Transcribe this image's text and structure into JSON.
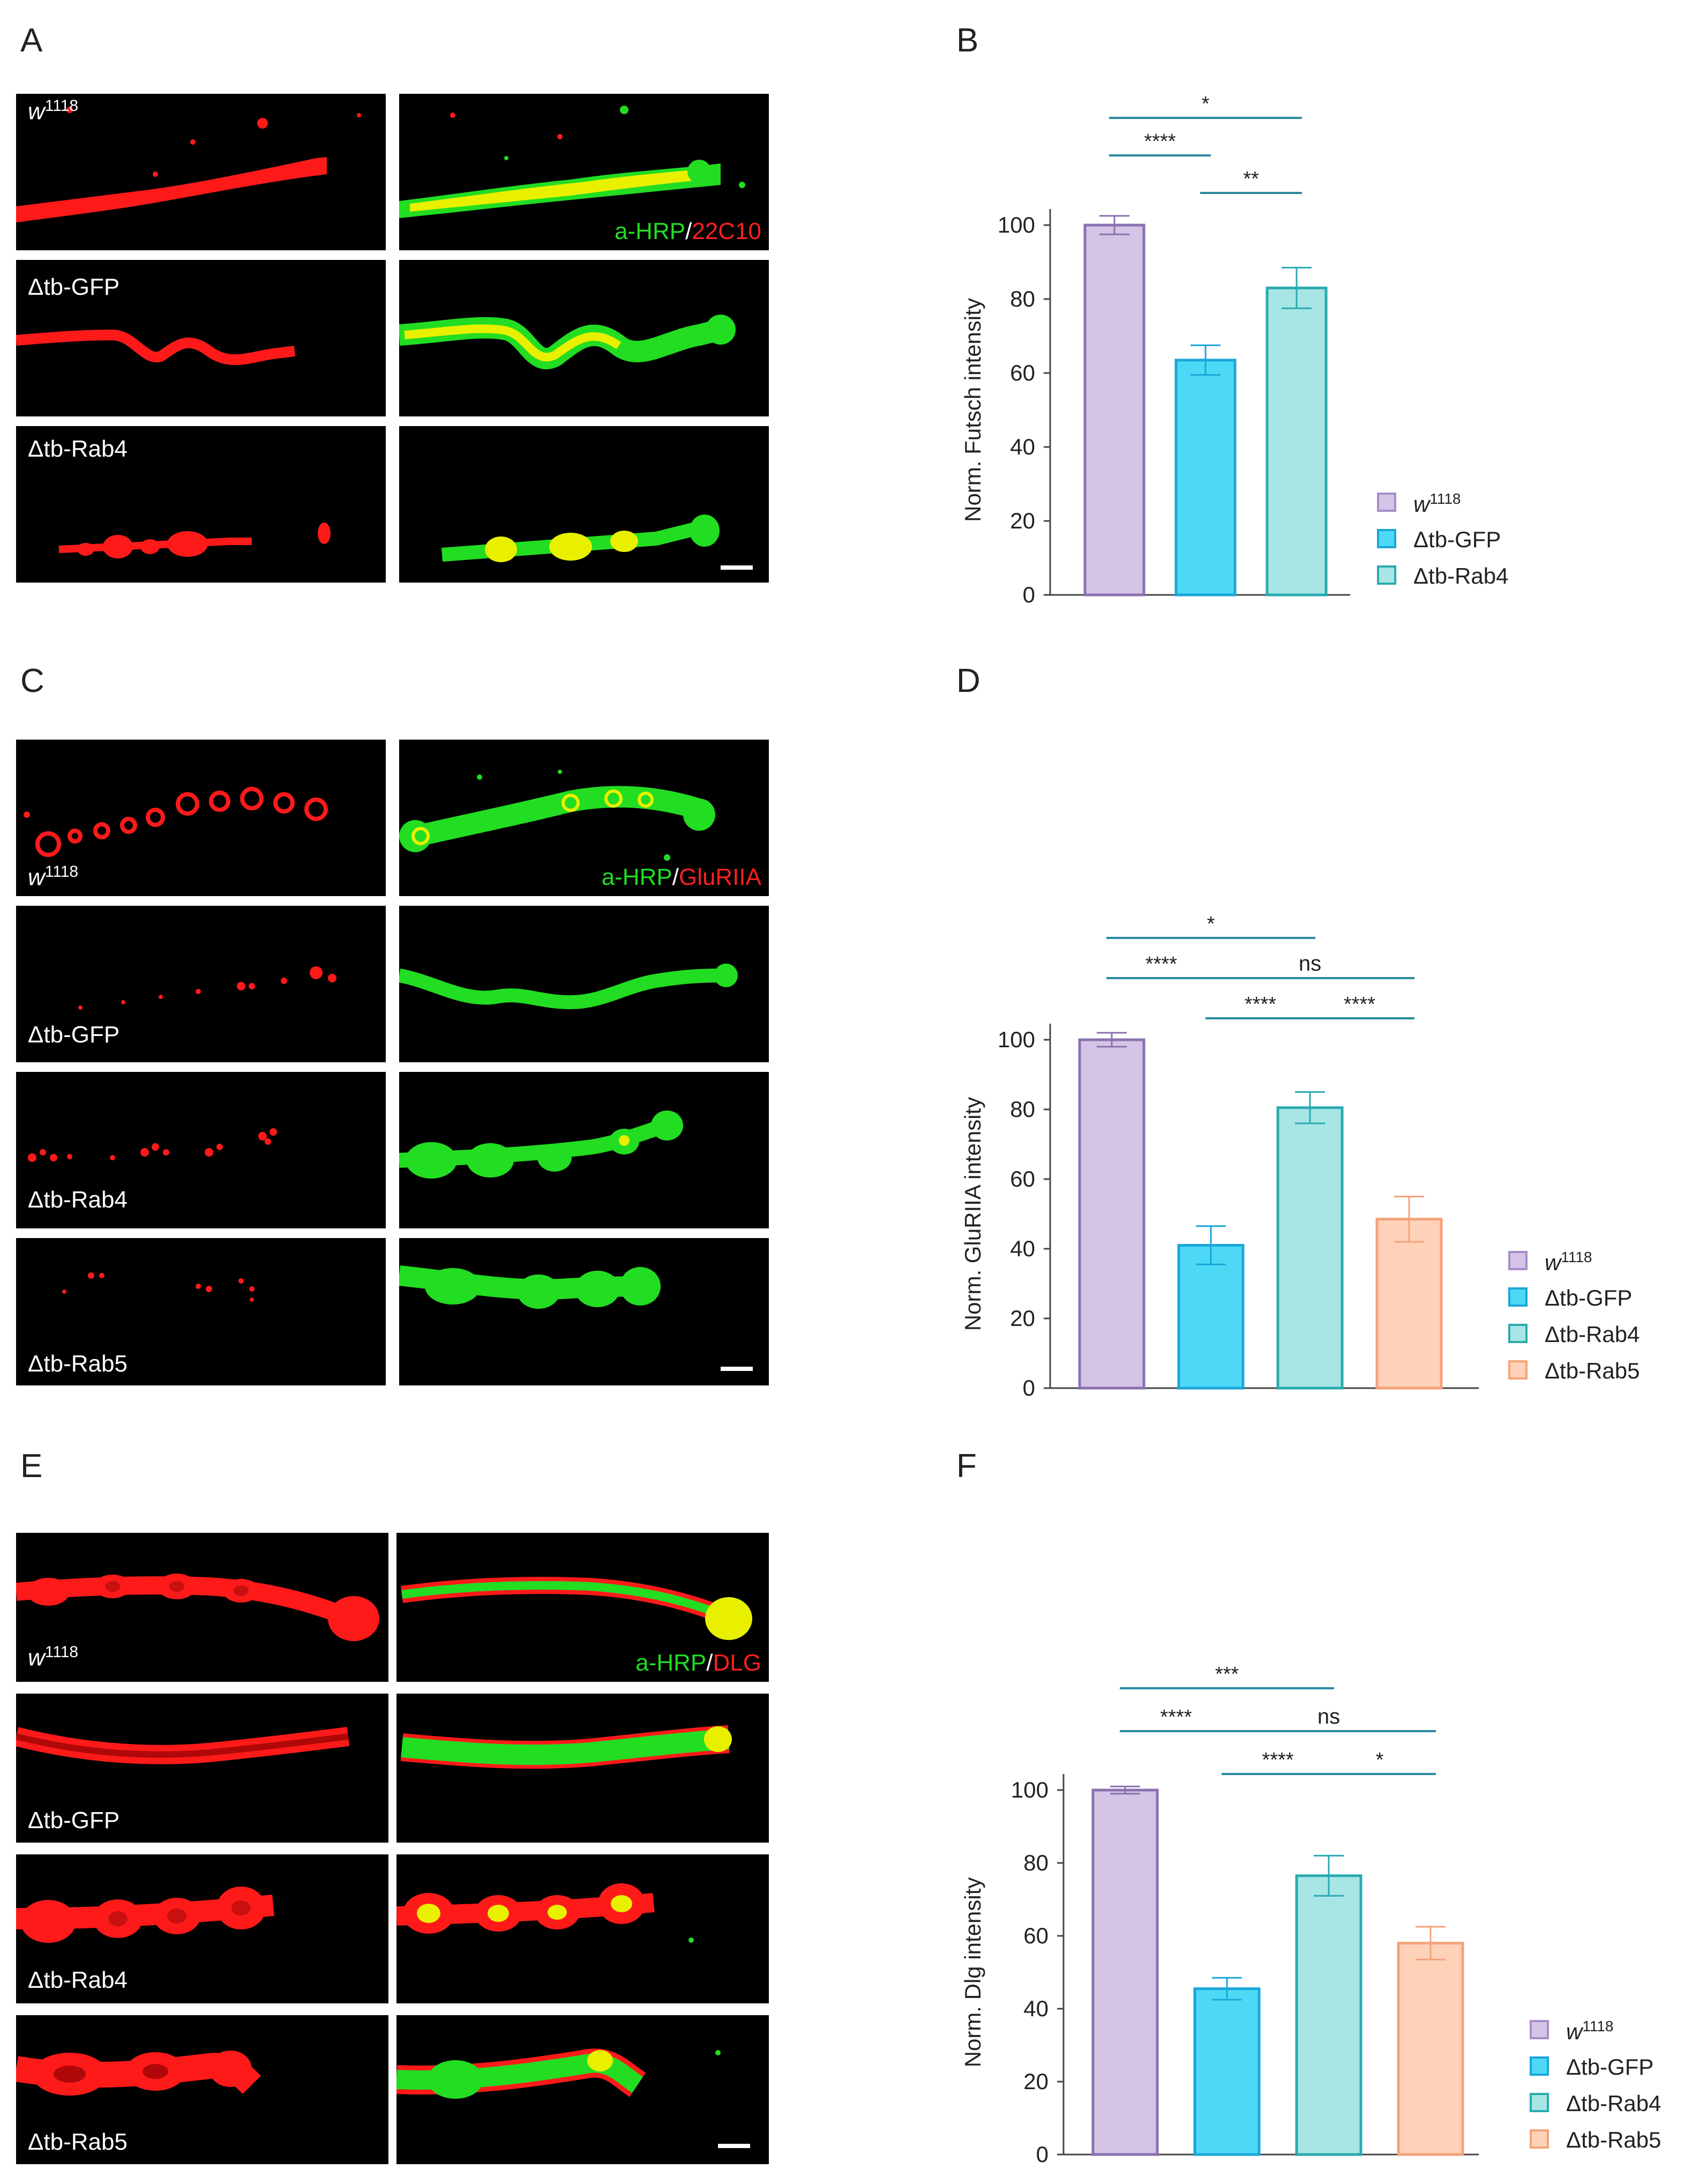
{
  "colors": {
    "w1118_fill": "#d4c4e6",
    "w1118_stroke": "#8a70b0",
    "gfp_fill": "#4dd9f6",
    "gfp_stroke": "#1aa6d8",
    "rab4_fill": "#a8e6e6",
    "rab4_stroke": "#2aaab0",
    "rab5_fill": "#fdd2b8",
    "rab5_stroke": "#f4a27a",
    "sig_line": "#2a8aa0",
    "red_channel": "#ff1a1a",
    "green_channel": "#22dd22",
    "yellow_overlap": "#e8f000"
  },
  "panels": {
    "A": "A",
    "B": "B",
    "C": "C",
    "D": "D",
    "E": "E",
    "F": "F"
  },
  "genotypes": {
    "w1118_base": "w",
    "w1118_sup": "1118",
    "gfp": "Δtb-GFP",
    "rab4": "Δtb-Rab4",
    "rab5": "Δtb-Rab5"
  },
  "stains": {
    "A": {
      "marker": "a-HRP",
      "sep": "/",
      "target": "22C10"
    },
    "C": {
      "marker": "a-HRP",
      "sep": "/",
      "target": "GluRIIA"
    },
    "E": {
      "marker": "a-HRP",
      "sep": "/",
      "target": "DLG"
    }
  },
  "chart_data": [
    {
      "id": "B",
      "type": "bar",
      "ylabel": "Norm. Futsch intensity",
      "ylim": [
        0,
        100
      ],
      "yticks": [
        0,
        20,
        40,
        60,
        80,
        100
      ],
      "categories": [
        "w1118",
        "Δtb-GFP",
        "Δtb-Rab4"
      ],
      "values": [
        100,
        63.5,
        83
      ],
      "errors": [
        2.5,
        4,
        5.5
      ],
      "significance": [
        {
          "from": 0,
          "to": 1,
          "label": "****",
          "level": 1
        },
        {
          "from": 0,
          "to": 2,
          "label": "*",
          "level": 2
        },
        {
          "from": 1,
          "to": 2,
          "label": "**",
          "level": 0
        }
      ],
      "legend": [
        "w1118",
        "Δtb-GFP",
        "Δtb-Rab4"
      ]
    },
    {
      "id": "D",
      "type": "bar",
      "ylabel": "Norm. GluRIIA intensity",
      "ylim": [
        0,
        100
      ],
      "yticks": [
        0,
        20,
        40,
        60,
        80,
        100
      ],
      "categories": [
        "w1118",
        "Δtb-GFP",
        "Δtb-Rab4",
        "Δtb-Rab5"
      ],
      "values": [
        100,
        41,
        80.5,
        48.5
      ],
      "errors": [
        2,
        5.5,
        4.5,
        6.5
      ],
      "significance": [
        {
          "from": 0,
          "to": 1,
          "label": "****",
          "level": 1
        },
        {
          "from": 0,
          "to": 2,
          "label": "*",
          "level": 2
        },
        {
          "from": 1,
          "to": 2,
          "label": "****",
          "level": 0
        },
        {
          "from": 2,
          "to": 3,
          "label": "****",
          "level": 0
        },
        {
          "from": 1,
          "to": 3,
          "label": "ns",
          "level": 1
        }
      ],
      "legend": [
        "w1118",
        "Δtb-GFP",
        "Δtb-Rab4",
        "Δtb-Rab5"
      ]
    },
    {
      "id": "F",
      "type": "bar",
      "ylabel": "Norm. Dlg intensity",
      "ylim": [
        0,
        100
      ],
      "yticks": [
        0,
        20,
        40,
        60,
        80,
        100
      ],
      "categories": [
        "w1118",
        "Δtb-GFP",
        "Δtb-Rab4",
        "Δtb-Rab5"
      ],
      "values": [
        100,
        45.5,
        76.5,
        58
      ],
      "errors": [
        1,
        3,
        5.5,
        4.5
      ],
      "significance": [
        {
          "from": 0,
          "to": 1,
          "label": "****",
          "level": 1
        },
        {
          "from": 0,
          "to": 2,
          "label": "***",
          "level": 2
        },
        {
          "from": 1,
          "to": 2,
          "label": "****",
          "level": 0
        },
        {
          "from": 2,
          "to": 3,
          "label": "*",
          "level": 0
        },
        {
          "from": 1,
          "to": 3,
          "label": "ns",
          "level": 1
        }
      ],
      "legend": [
        "w1118",
        "Δtb-GFP",
        "Δtb-Rab4",
        "Δtb-Rab5"
      ]
    }
  ]
}
